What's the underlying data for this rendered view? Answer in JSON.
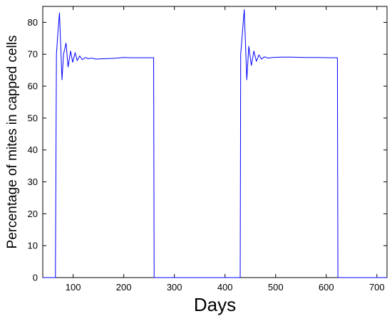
{
  "chart_data": {
    "type": "line",
    "title": "",
    "xlabel": "Days",
    "ylabel": "Percentage of mites in capped cells",
    "xlim": [
      40,
      720
    ],
    "ylim": [
      0,
      85
    ],
    "xticks": [
      100,
      200,
      300,
      400,
      500,
      600,
      700
    ],
    "yticks": [
      0,
      10,
      20,
      30,
      40,
      50,
      60,
      70,
      80
    ],
    "grid": false,
    "line_color": "#0000ff",
    "series": [
      {
        "x": [
          40,
          65,
          67,
          70,
          73,
          78,
          81,
          86,
          90,
          95,
          99,
          104,
          108,
          113,
          118,
          124,
          130,
          137,
          145,
          160,
          180,
          200,
          215,
          230,
          245,
          259,
          260,
          430,
          431,
          434,
          438,
          443,
          447,
          452,
          457,
          462,
          467,
          472,
          478,
          485,
          495,
          510,
          530,
          555,
          580,
          605,
          622,
          623,
          720
        ],
        "y": [
          0,
          0,
          70,
          77,
          83,
          62,
          70,
          73.5,
          66,
          71,
          67.5,
          70.5,
          68,
          69.5,
          68.3,
          69,
          68.6,
          68.8,
          68.5,
          68.6,
          68.7,
          69,
          68.9,
          68.9,
          68.9,
          68.9,
          0,
          0,
          70,
          76,
          84,
          62,
          72.5,
          66.5,
          71,
          67.8,
          69.8,
          68.5,
          69.2,
          68.8,
          69,
          69.1,
          69.1,
          69,
          69,
          68.9,
          68.9,
          0,
          0
        ]
      }
    ]
  }
}
